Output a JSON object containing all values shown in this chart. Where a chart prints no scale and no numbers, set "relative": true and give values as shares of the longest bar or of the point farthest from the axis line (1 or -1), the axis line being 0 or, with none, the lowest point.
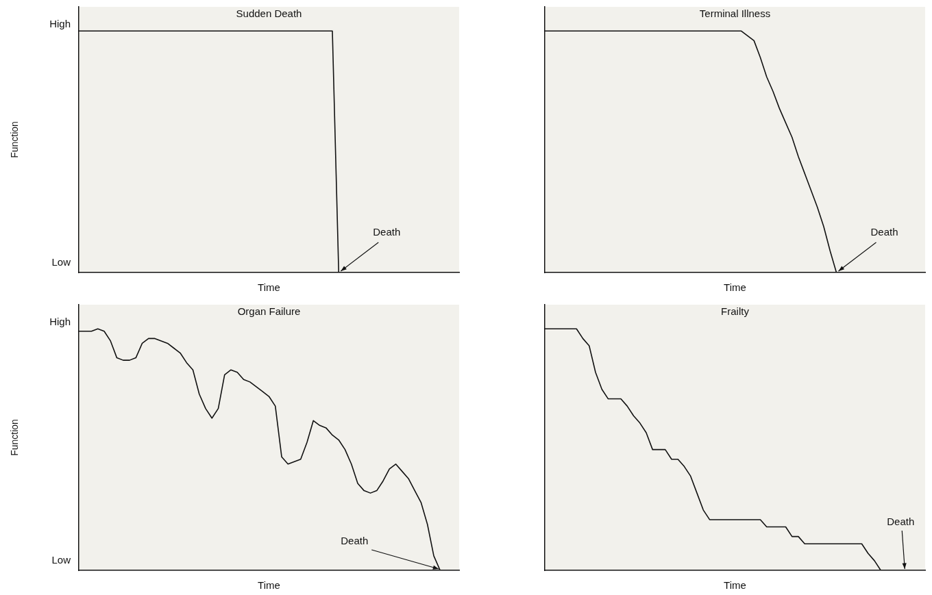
{
  "chart_data": [
    {
      "type": "line",
      "title": "Sudden Death",
      "xlabel": "Time",
      "ylabel": "Function",
      "relative": true,
      "categories": [
        null,
        null,
        null,
        null,
        null,
        null,
        null,
        null,
        null,
        null,
        null,
        null,
        null,
        null,
        null,
        null,
        null,
        null,
        null,
        null,
        null,
        null,
        null,
        null,
        null,
        null,
        null,
        null,
        null,
        null,
        null,
        null,
        null,
        null,
        null,
        null,
        null,
        null,
        null,
        null,
        null,
        null,
        null,
        null,
        null,
        null,
        null,
        null,
        null,
        null,
        null,
        null,
        null,
        null,
        null,
        null,
        null,
        null,
        null,
        null,
        null
      ],
      "tick_labels": false,
      "grid": false,
      "legend": false,
      "marker": "none",
      "line_style": "solid",
      "series": [
        {
          "color": "#111111",
          "values": [
            1,
            1,
            1,
            1,
            1,
            1,
            1,
            1,
            1,
            1,
            1,
            1,
            1,
            1,
            1,
            1,
            1,
            1,
            1,
            1,
            1,
            1,
            1,
            1,
            1,
            1,
            1,
            1,
            1,
            1,
            1,
            1,
            1,
            1,
            1,
            1,
            1,
            1,
            1,
            1,
            1,
            0,
            null,
            null,
            null,
            null,
            null,
            null,
            null,
            null,
            null,
            null,
            null,
            null,
            null,
            null,
            null,
            null,
            null,
            null,
            null
          ]
        }
      ],
      "annotations": [
        "High",
        "Low",
        "Death"
      ]
    },
    {
      "type": "line",
      "title": "Terminal Illness",
      "xlabel": "Time",
      "relative": true,
      "categories": [
        null,
        null,
        null,
        null,
        null,
        null,
        null,
        null,
        null,
        null,
        null,
        null,
        null,
        null,
        null,
        null,
        null,
        null,
        null,
        null,
        null,
        null,
        null,
        null,
        null,
        null,
        null,
        null,
        null,
        null,
        null,
        null,
        null,
        null,
        null,
        null,
        null,
        null,
        null,
        null,
        null,
        null,
        null,
        null,
        null,
        null,
        null,
        null,
        null,
        null,
        null,
        null,
        null,
        null,
        null,
        null,
        null,
        null,
        null,
        null,
        null
      ],
      "tick_labels": false,
      "grid": false,
      "legend": false,
      "marker": "none",
      "line_style": "solid",
      "series": [
        {
          "color": "#111111",
          "values": [
            1,
            1,
            1,
            1,
            1,
            1,
            1,
            1,
            1,
            1,
            1,
            1,
            1,
            1,
            1,
            1,
            1,
            1,
            1,
            1,
            1,
            1,
            1,
            1,
            1,
            1,
            1,
            1,
            1,
            1,
            1,
            1,
            0.98,
            0.96,
            0.89,
            0.81,
            0.75,
            0.68,
            0.62,
            0.56,
            0.48,
            0.41,
            0.34,
            0.27,
            0.19,
            0.09,
            0,
            null,
            null,
            null,
            null,
            null,
            null,
            null,
            null,
            null,
            null,
            null,
            null,
            null,
            null
          ]
        }
      ],
      "annotations": [
        "Death"
      ]
    },
    {
      "type": "line",
      "title": "Organ Failure",
      "xlabel": "Time",
      "ylabel": "Function",
      "relative": true,
      "categories": [
        null,
        null,
        null,
        null,
        null,
        null,
        null,
        null,
        null,
        null,
        null,
        null,
        null,
        null,
        null,
        null,
        null,
        null,
        null,
        null,
        null,
        null,
        null,
        null,
        null,
        null,
        null,
        null,
        null,
        null,
        null,
        null,
        null,
        null,
        null,
        null,
        null,
        null,
        null,
        null,
        null,
        null,
        null,
        null,
        null,
        null,
        null,
        null,
        null,
        null,
        null,
        null,
        null,
        null,
        null,
        null,
        null,
        null,
        null,
        null,
        null
      ],
      "tick_labels": false,
      "grid": false,
      "legend": false,
      "marker": "none",
      "line_style": "solid",
      "series": [
        {
          "color": "#111111",
          "values": [
            0.99,
            0.99,
            0.99,
            1,
            0.99,
            0.95,
            0.88,
            0.87,
            0.87,
            0.88,
            0.94,
            0.96,
            0.96,
            0.95,
            0.94,
            0.92,
            0.9,
            0.86,
            0.83,
            0.73,
            0.67,
            0.63,
            0.67,
            0.81,
            0.83,
            0.82,
            0.79,
            0.78,
            0.76,
            0.74,
            0.72,
            0.68,
            0.47,
            0.44,
            0.45,
            0.46,
            0.53,
            0.62,
            0.6,
            0.59,
            0.56,
            0.54,
            0.5,
            0.44,
            0.36,
            0.33,
            0.32,
            0.33,
            0.37,
            0.42,
            0.44,
            0.41,
            0.38,
            0.33,
            0.28,
            0.19,
            0.06,
            0,
            null,
            null,
            null
          ]
        }
      ],
      "annotations": [
        "High",
        "Low",
        "Death"
      ]
    },
    {
      "type": "line",
      "title": "Frailty",
      "xlabel": "Time",
      "relative": true,
      "categories": [
        null,
        null,
        null,
        null,
        null,
        null,
        null,
        null,
        null,
        null,
        null,
        null,
        null,
        null,
        null,
        null,
        null,
        null,
        null,
        null,
        null,
        null,
        null,
        null,
        null,
        null,
        null,
        null,
        null,
        null,
        null,
        null,
        null,
        null,
        null,
        null,
        null,
        null,
        null,
        null,
        null,
        null,
        null,
        null,
        null,
        null,
        null,
        null,
        null,
        null,
        null,
        null,
        null,
        null,
        null,
        null,
        null,
        null,
        null,
        null,
        null
      ],
      "tick_labels": false,
      "grid": false,
      "legend": false,
      "marker": "none",
      "line_style": "solid",
      "series": [
        {
          "color": "#111111",
          "values": [
            1,
            1,
            1,
            1,
            1,
            1,
            0.96,
            0.93,
            0.82,
            0.75,
            0.71,
            0.71,
            0.71,
            0.68,
            0.64,
            0.61,
            0.57,
            0.5,
            0.5,
            0.5,
            0.46,
            0.46,
            0.43,
            0.39,
            0.32,
            0.25,
            0.21,
            0.21,
            0.21,
            0.21,
            0.21,
            0.21,
            0.21,
            0.21,
            0.21,
            0.18,
            0.18,
            0.18,
            0.18,
            0.14,
            0.14,
            0.11,
            0.11,
            0.11,
            0.11,
            0.11,
            0.11,
            0.11,
            0.11,
            0.11,
            0.11,
            0.07,
            0.04,
            0,
            0,
            0,
            0,
            0,
            null,
            null,
            null
          ]
        }
      ],
      "annotations": [
        "Death"
      ]
    }
  ]
}
